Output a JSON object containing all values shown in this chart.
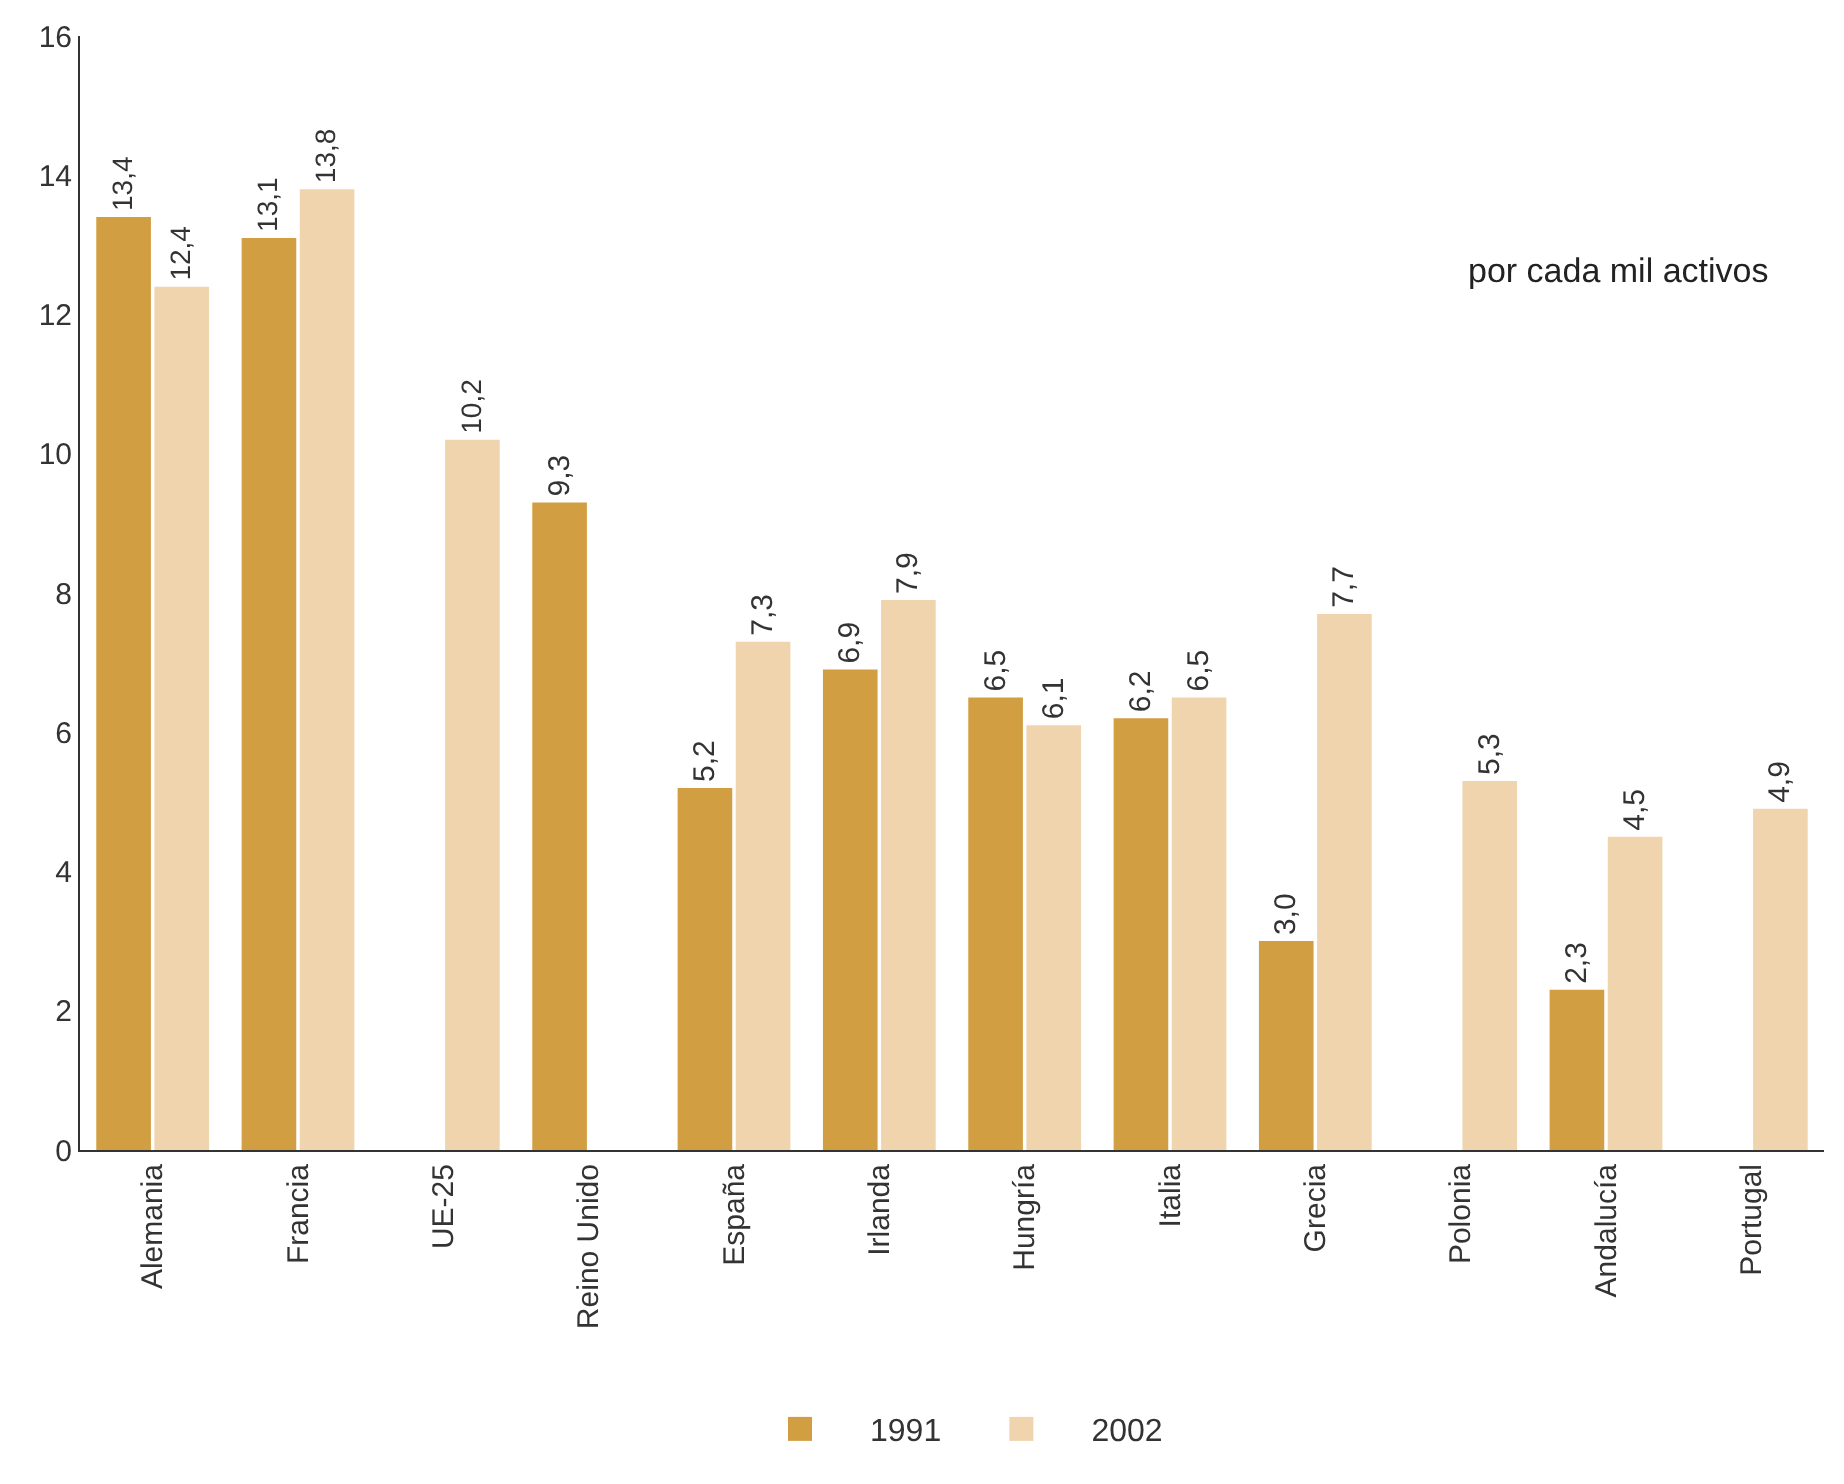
{
  "chart_data": {
    "type": "bar",
    "categories": [
      "Alemania",
      "Francia",
      "UE-25",
      "Reino Unido",
      "España",
      "Irlanda",
      "Hungría",
      "Italia",
      "Grecia",
      "Polonia",
      "Andalucía",
      "Portugal"
    ],
    "series": [
      {
        "name": "1991",
        "color": "#d19e42",
        "values": [
          13.4,
          13.1,
          null,
          9.3,
          5.2,
          6.9,
          6.5,
          6.2,
          3.0,
          null,
          2.3,
          null
        ],
        "value_labels": [
          "13,4",
          "13,1",
          null,
          "9,3",
          "5,2",
          "6,9",
          "6,5",
          "6,2",
          "3,0",
          null,
          "2,3",
          null
        ]
      },
      {
        "name": "2002",
        "color": "#f0d4ae",
        "values": [
          12.4,
          13.8,
          10.2,
          null,
          7.3,
          7.9,
          6.1,
          6.5,
          7.7,
          5.3,
          4.5,
          4.9
        ],
        "value_labels": [
          "12,4",
          "13,8",
          "10,2",
          null,
          "7,3",
          "7,9",
          "6,1",
          "6,5",
          "7,7",
          "5,3",
          "4,5",
          "4,9"
        ]
      }
    ],
    "ylim": [
      0,
      16
    ],
    "yticks": [
      0,
      2,
      4,
      6,
      8,
      10,
      12,
      14,
      16
    ],
    "annotations": [
      "por cada mil activos"
    ],
    "grid": false,
    "legend": "bottom"
  }
}
